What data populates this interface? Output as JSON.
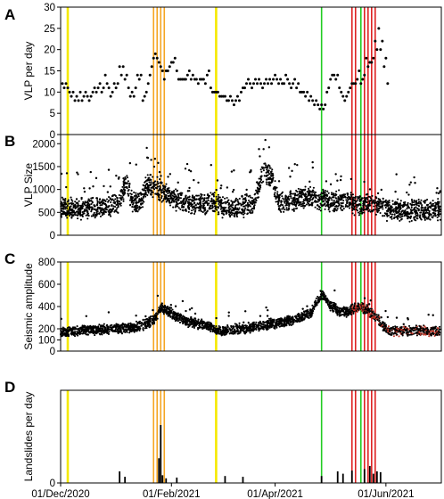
{
  "chart_data": [
    {
      "type": "scatter",
      "letter": "A",
      "ylabel": "VLP per day",
      "ylim": [
        0,
        30
      ],
      "yticks": [
        0,
        5,
        10,
        15,
        20,
        25,
        30
      ],
      "tick_labels": [
        "0",
        "5",
        "10",
        "15",
        "20",
        "25",
        "30"
      ],
      "x_day_range": [
        0,
        213
      ],
      "points": [
        [
          1,
          12
        ],
        [
          2,
          11
        ],
        [
          3,
          12
        ],
        [
          4,
          11
        ],
        [
          5,
          10
        ],
        [
          6,
          9
        ],
        [
          7,
          10
        ],
        [
          8,
          8
        ],
        [
          9,
          9
        ],
        [
          10,
          8
        ],
        [
          11,
          10
        ],
        [
          12,
          8
        ],
        [
          13,
          9
        ],
        [
          14,
          10
        ],
        [
          15,
          9
        ],
        [
          16,
          8
        ],
        [
          17,
          9
        ],
        [
          18,
          10
        ],
        [
          19,
          11
        ],
        [
          20,
          10
        ],
        [
          21,
          11
        ],
        [
          22,
          12
        ],
        [
          23,
          10
        ],
        [
          24,
          11
        ],
        [
          25,
          14
        ],
        [
          26,
          12
        ],
        [
          27,
          11
        ],
        [
          28,
          9
        ],
        [
          29,
          10
        ],
        [
          30,
          12
        ],
        [
          31,
          11
        ],
        [
          32,
          12
        ],
        [
          33,
          16
        ],
        [
          34,
          14
        ],
        [
          35,
          16
        ],
        [
          36,
          13
        ],
        [
          37,
          14
        ],
        [
          38,
          11
        ],
        [
          39,
          9
        ],
        [
          40,
          10
        ],
        [
          41,
          9
        ],
        [
          42,
          11
        ],
        [
          43,
          14
        ],
        [
          44,
          13
        ],
        [
          45,
          14
        ],
        [
          46,
          8
        ],
        [
          47,
          9
        ],
        [
          48,
          10
        ],
        [
          49,
          12
        ],
        [
          50,
          14
        ],
        [
          51,
          16
        ],
        [
          52,
          18
        ],
        [
          53,
          19
        ],
        [
          54,
          18
        ],
        [
          55,
          17
        ],
        [
          56,
          16
        ],
        [
          57,
          15
        ],
        [
          58,
          13
        ],
        [
          59,
          15
        ],
        [
          60,
          15
        ],
        [
          61,
          16
        ],
        [
          62,
          17
        ],
        [
          63,
          17
        ],
        [
          64,
          18
        ],
        [
          65,
          15
        ],
        [
          66,
          13
        ],
        [
          67,
          13
        ],
        [
          68,
          13
        ],
        [
          69,
          13
        ],
        [
          70,
          13
        ],
        [
          71,
          14
        ],
        [
          72,
          15
        ],
        [
          73,
          13
        ],
        [
          74,
          14
        ],
        [
          75,
          13
        ],
        [
          76,
          13
        ],
        [
          77,
          12
        ],
        [
          78,
          13
        ],
        [
          79,
          13
        ],
        [
          80,
          13
        ],
        [
          81,
          12
        ],
        [
          82,
          14
        ],
        [
          83,
          15
        ],
        [
          84,
          11
        ],
        [
          85,
          10
        ],
        [
          86,
          10
        ],
        [
          87,
          10
        ],
        [
          88,
          10
        ],
        [
          89,
          9
        ],
        [
          90,
          9
        ],
        [
          91,
          9
        ],
        [
          92,
          9
        ],
        [
          93,
          8
        ],
        [
          94,
          8
        ],
        [
          95,
          9
        ],
        [
          96,
          8
        ],
        [
          97,
          7
        ],
        [
          98,
          8
        ],
        [
          99,
          9
        ],
        [
          100,
          8
        ],
        [
          101,
          10
        ],
        [
          102,
          11
        ],
        [
          103,
          11
        ],
        [
          104,
          12
        ],
        [
          105,
          13
        ],
        [
          106,
          12
        ],
        [
          107,
          11
        ],
        [
          108,
          12
        ],
        [
          109,
          13
        ],
        [
          110,
          12
        ],
        [
          111,
          13
        ],
        [
          112,
          12
        ],
        [
          113,
          11
        ],
        [
          114,
          12
        ],
        [
          115,
          13
        ],
        [
          116,
          12
        ],
        [
          117,
          13
        ],
        [
          118,
          12
        ],
        [
          119,
          13
        ],
        [
          120,
          14
        ],
        [
          121,
          13
        ],
        [
          122,
          12
        ],
        [
          123,
          13
        ],
        [
          124,
          12
        ],
        [
          125,
          12
        ],
        [
          126,
          14
        ],
        [
          127,
          13
        ],
        [
          128,
          12
        ],
        [
          129,
          11
        ],
        [
          130,
          12
        ],
        [
          131,
          13
        ],
        [
          132,
          11
        ],
        [
          133,
          12
        ],
        [
          134,
          10
        ],
        [
          135,
          10
        ],
        [
          136,
          10
        ],
        [
          137,
          9
        ],
        [
          138,
          10
        ],
        [
          139,
          8
        ],
        [
          140,
          9
        ],
        [
          141,
          8
        ],
        [
          142,
          7
        ],
        [
          143,
          8
        ],
        [
          144,
          7
        ],
        [
          145,
          6
        ],
        [
          146,
          7
        ],
        [
          147,
          6
        ],
        [
          148,
          7
        ],
        [
          149,
          10
        ],
        [
          150,
          11
        ],
        [
          151,
          13
        ],
        [
          152,
          14
        ],
        [
          153,
          14
        ],
        [
          154,
          13
        ],
        [
          155,
          14
        ],
        [
          156,
          11
        ],
        [
          157,
          10
        ],
        [
          158,
          9
        ],
        [
          159,
          8
        ],
        [
          160,
          9
        ],
        [
          161,
          10
        ],
        [
          162,
          11
        ],
        [
          163,
          12
        ],
        [
          164,
          12
        ],
        [
          165,
          12
        ],
        [
          166,
          13
        ],
        [
          167,
          15
        ],
        [
          168,
          12
        ],
        [
          169,
          13
        ],
        [
          170,
          14
        ],
        [
          171,
          18
        ],
        [
          172,
          16
        ],
        [
          173,
          17
        ],
        [
          174,
          17
        ],
        [
          175,
          18
        ],
        [
          176,
          22
        ],
        [
          177,
          20
        ],
        [
          178,
          25
        ],
        [
          179,
          20
        ],
        [
          180,
          22
        ],
        [
          181,
          16
        ],
        [
          182,
          18
        ],
        [
          183,
          12
        ]
      ],
      "lines": [
        [
          4,
          "#f5e900"
        ],
        [
          52,
          "#f5a623"
        ],
        [
          54,
          "#f5a623"
        ],
        [
          56,
          "#f5a623"
        ],
        [
          58,
          "#f5a623"
        ],
        [
          87,
          "#f5e900"
        ],
        [
          146,
          "#22cc22"
        ],
        [
          163,
          "#dd2222"
        ],
        [
          165,
          "#dd2222"
        ],
        [
          168,
          "#22cc22"
        ],
        [
          170,
          "#dd2222"
        ],
        [
          172,
          "#dd2222"
        ],
        [
          174,
          "#dd2222"
        ],
        [
          176,
          "#dd2222"
        ]
      ]
    },
    {
      "type": "scatter",
      "letter": "B",
      "ylabel": "VLP Size",
      "ylim": [
        0,
        2200
      ],
      "yticks": [
        0,
        500,
        1000,
        1500,
        2000
      ],
      "tick_labels": [
        "0",
        "500",
        "1000",
        "1500",
        "2000"
      ],
      "x_day_range": [
        0,
        213
      ],
      "profile": [
        [
          0,
          600
        ],
        [
          10,
          560
        ],
        [
          20,
          600
        ],
        [
          28,
          650
        ],
        [
          33,
          700
        ],
        [
          37,
          1200
        ],
        [
          40,
          680
        ],
        [
          45,
          750
        ],
        [
          48,
          1100
        ],
        [
          55,
          1000
        ],
        [
          62,
          820
        ],
        [
          70,
          720
        ],
        [
          78,
          680
        ],
        [
          86,
          720
        ],
        [
          90,
          620
        ],
        [
          100,
          610
        ],
        [
          108,
          680
        ],
        [
          113,
          1380
        ],
        [
          118,
          1300
        ],
        [
          122,
          720
        ],
        [
          130,
          740
        ],
        [
          138,
          860
        ],
        [
          146,
          760
        ],
        [
          152,
          740
        ],
        [
          160,
          760
        ],
        [
          166,
          650
        ],
        [
          172,
          700
        ],
        [
          183,
          550
        ]
      ],
      "noise": 380,
      "outlier_count": 110,
      "lines": [
        [
          4,
          "#f5e900"
        ],
        [
          52,
          "#f5a623"
        ],
        [
          54,
          "#f5a623"
        ],
        [
          56,
          "#f5a623"
        ],
        [
          58,
          "#f5a623"
        ],
        [
          87,
          "#f5e900"
        ],
        [
          146,
          "#22cc22"
        ],
        [
          163,
          "#dd2222"
        ],
        [
          165,
          "#dd2222"
        ],
        [
          168,
          "#22cc22"
        ],
        [
          170,
          "#dd2222"
        ],
        [
          172,
          "#dd2222"
        ],
        [
          174,
          "#dd2222"
        ],
        [
          176,
          "#dd2222"
        ]
      ]
    },
    {
      "type": "scatter",
      "letter": "C",
      "ylabel": "Seismic amplitude",
      "ylim": [
        0,
        800
      ],
      "yticks": [
        0,
        100,
        200,
        400,
        600,
        800
      ],
      "tick_labels": [
        "0",
        "100",
        "200",
        "400",
        "600",
        "800"
      ],
      "x_day_range": [
        0,
        213
      ],
      "profile": [
        [
          0,
          170
        ],
        [
          10,
          180
        ],
        [
          20,
          190
        ],
        [
          30,
          200
        ],
        [
          40,
          210
        ],
        [
          48,
          240
        ],
        [
          52,
          280
        ],
        [
          56,
          380
        ],
        [
          60,
          360
        ],
        [
          66,
          300
        ],
        [
          72,
          260
        ],
        [
          80,
          240
        ],
        [
          86,
          200
        ],
        [
          90,
          180
        ],
        [
          100,
          200
        ],
        [
          110,
          220
        ],
        [
          120,
          250
        ],
        [
          130,
          280
        ],
        [
          140,
          340
        ],
        [
          146,
          520
        ],
        [
          150,
          420
        ],
        [
          156,
          360
        ],
        [
          160,
          350
        ],
        [
          164,
          380
        ],
        [
          168,
          400
        ],
        [
          172,
          360
        ],
        [
          178,
          280
        ],
        [
          183,
          180
        ]
      ],
      "noise": 75,
      "outlier_count": 45,
      "red_start_day": 163,
      "lines": [
        [
          4,
          "#f5e900"
        ],
        [
          52,
          "#f5a623"
        ],
        [
          54,
          "#f5a623"
        ],
        [
          56,
          "#f5a623"
        ],
        [
          58,
          "#f5a623"
        ],
        [
          87,
          "#f5e900"
        ],
        [
          146,
          "#22cc22"
        ],
        [
          163,
          "#dd2222"
        ],
        [
          165,
          "#dd2222"
        ],
        [
          168,
          "#22cc22"
        ],
        [
          170,
          "#dd2222"
        ],
        [
          172,
          "#dd2222"
        ],
        [
          174,
          "#dd2222"
        ],
        [
          176,
          "#dd2222"
        ]
      ]
    },
    {
      "type": "bar",
      "letter": "D",
      "ylabel": "Landslides per day",
      "ylim": [
        0,
        12
      ],
      "yticks": [
        0
      ],
      "tick_labels": [
        "0"
      ],
      "x_day_range": [
        0,
        213
      ],
      "bars": [
        [
          33,
          1.5
        ],
        [
          36,
          0.8
        ],
        [
          55,
          3.2
        ],
        [
          56,
          7.5
        ],
        [
          57,
          1.0
        ],
        [
          59,
          0.6
        ],
        [
          65,
          0.7
        ],
        [
          92,
          0.9
        ],
        [
          102,
          0.8
        ],
        [
          146,
          0.9
        ],
        [
          155,
          1.5
        ],
        [
          158,
          1.2
        ],
        [
          163,
          1.6
        ],
        [
          170,
          1.8
        ],
        [
          173,
          2.2
        ],
        [
          175,
          1.2
        ],
        [
          177,
          1.5
        ],
        [
          179,
          1.4
        ]
      ],
      "lines": [
        [
          4,
          "#f5e900"
        ],
        [
          52,
          "#f5a623"
        ],
        [
          54,
          "#f5a623"
        ],
        [
          56,
          "#f5a623"
        ],
        [
          58,
          "#f5a623"
        ],
        [
          87,
          "#f5e900"
        ],
        [
          146,
          "#22cc22"
        ],
        [
          163,
          "#dd2222"
        ],
        [
          165,
          "#dd2222"
        ],
        [
          168,
          "#22cc22"
        ],
        [
          170,
          "#dd2222"
        ],
        [
          172,
          "#dd2222"
        ],
        [
          174,
          "#dd2222"
        ],
        [
          176,
          "#dd2222"
        ]
      ],
      "x_ticks": [
        {
          "day": 0,
          "label": "01/Dec/2020"
        },
        {
          "day": 62,
          "label": "01/Feb/2021"
        },
        {
          "day": 120,
          "label": "01/Apr/2021"
        },
        {
          "day": 182,
          "label": "01/Jun/2021"
        }
      ]
    }
  ]
}
